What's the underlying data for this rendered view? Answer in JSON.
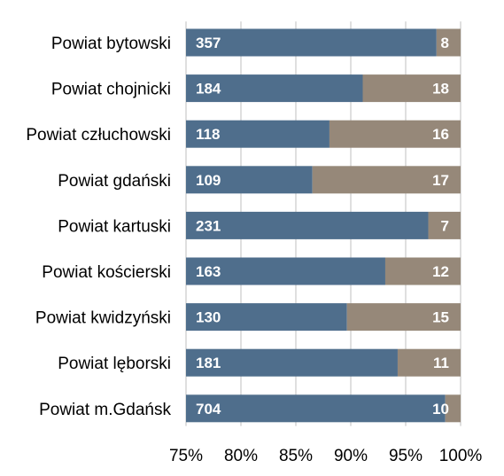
{
  "chart_data": {
    "type": "bar",
    "orientation": "horizontal",
    "stacking": "percent",
    "categories": [
      "Powiat bytowski",
      "Powiat chojnicki",
      "Powiat człuchowski",
      "Powiat gdański",
      "Powiat kartuski",
      "Powiat kościerski",
      "Powiat kwidzyński",
      "Powiat lęborski",
      "Powiat m.Gdańsk"
    ],
    "series": [
      {
        "values": [
          357,
          184,
          118,
          109,
          231,
          163,
          130,
          181,
          704
        ],
        "color": "#4f6e8c"
      },
      {
        "values": [
          8,
          18,
          16,
          17,
          7,
          12,
          15,
          11,
          10
        ],
        "color": "#968879"
      }
    ],
    "xlim": [
      75,
      100
    ],
    "xticks": [
      "75%",
      "80%",
      "85%",
      "90%",
      "95%",
      "100%"
    ],
    "grid": true,
    "legend": "none",
    "title": "",
    "xlabel": "",
    "ylabel": ""
  }
}
